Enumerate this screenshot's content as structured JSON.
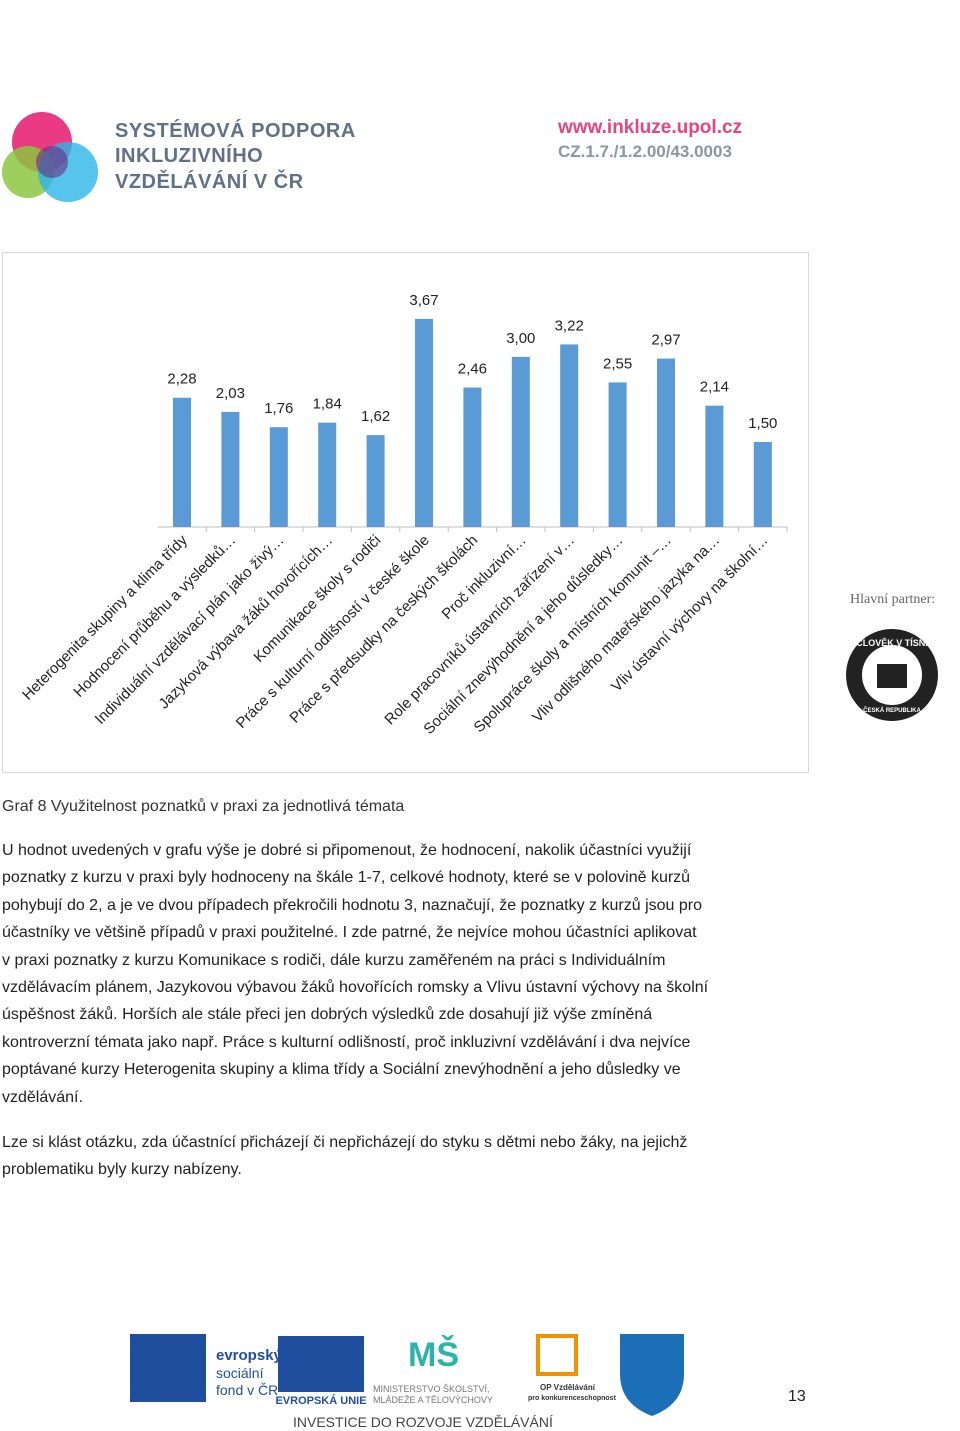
{
  "header": {
    "title_lines": [
      "SYSTÉMOVÁ PODPORA",
      "INKLUZIVNÍHO",
      "VZDĚLÁVÁNÍ V ČR"
    ],
    "url": "www.inkluze.upol.cz",
    "code": "CZ.1.7./1.2.00/43.0003"
  },
  "chart_data": {
    "type": "bar",
    "color": "#5b9bd5",
    "categories": [
      "Heterogenita skupiny a klima třídy",
      "Hodnocení průběhu a výsledků…",
      "Individuální vzdělávací plán  jako živý…",
      "Jazyková výbava žáků hovořících…",
      "Komunikace školy s rodiči",
      "Práce s kulturní odlišností v české škole",
      "Práce s předsudky na českých školách",
      "Proč inkluzivní…",
      "Role pracovníků ústavních zařízení v…",
      "Sociální znevýhodnění  a jeho důsledky…",
      "Spolupráce školy a místních komunit –…",
      "Vliv odlišného mateřského jazyka na…",
      "Vliv ústavní výchovy na školní…"
    ],
    "values": [
      2.28,
      2.03,
      1.76,
      1.84,
      1.62,
      3.67,
      2.46,
      3.0,
      3.22,
      2.55,
      2.97,
      2.14,
      1.5
    ],
    "value_labels": [
      "2,28",
      "2,03",
      "1,76",
      "1,84",
      "1,62",
      "3,67",
      "2,46",
      "3,00",
      "3,22",
      "2,55",
      "2,97",
      "2,14",
      "1,50"
    ]
  },
  "caption": "Graf 8 Využitelnost poznatků v praxi za jednotlivá témata",
  "paragraphs": [
    [
      "U hodnot uvedených v grafu výše je dobré si připomenout, že hodnocení, nakolik účastníci využijí",
      "poznatky z kurzu v praxi byly hodnoceny na škále 1-7, celkové hodnoty, které se v polovině kurzů",
      "pohybují do 2, a je ve dvou případech překročili hodnotu 3, naznačují, že poznatky z kurzů jsou pro",
      "účastníky ve většině případů v praxi použitelné. I zde patrné, že nejvíce mohou účastníci aplikovat",
      "v praxi poznatky z kurzu Komunikace s rodiči, dále kurzu zaměřeném na práci s Individuálním",
      "vzdělávacím plánem, Jazykovou výbavou žáků hovořících romsky a Vlivu ústavní výchovy na školní",
      "úspěšnost žáků. Horších ale stále přeci jen dobrých výsledků zde dosahují již výše zmíněná",
      "kontroverzní témata jako např. Práce s kulturní odlišností, proč inkluzivní vzdělávání i dva nejvíce",
      "poptávané kurzy Heterogenita skupiny a klima třídy a Sociální znevýhodnění a jeho důsledky ve",
      "vzdělávání."
    ],
    [
      "Lze si klást otázku, zda účastnící přicházejí či nepřicházejí do styku s dětmi nebo žáky, na jejichž",
      "problematiku byly kurzy nabízeny."
    ]
  ],
  "partner": {
    "label": "Hlavní partner:",
    "logo_top": "ČLOVĚK V TÍSNI",
    "logo_bottom": "ČESKÁ REPUBLIKA"
  },
  "footer": {
    "esf": [
      "evropský",
      "sociální",
      "fond v ČR"
    ],
    "eu": "EVROPSKÁ UNIE",
    "msmt": [
      "MINISTERSTVO ŠKOLSTVÍ,",
      "MLÁDEŽE A TĚLOVÝCHOVY"
    ],
    "op": [
      "OP Vzdělávání",
      "pro konkurenceschopnost"
    ],
    "slogan": "INVESTICE DO ROZVOJE VZDĚLÁVÁNÍ",
    "page_number": "13"
  }
}
